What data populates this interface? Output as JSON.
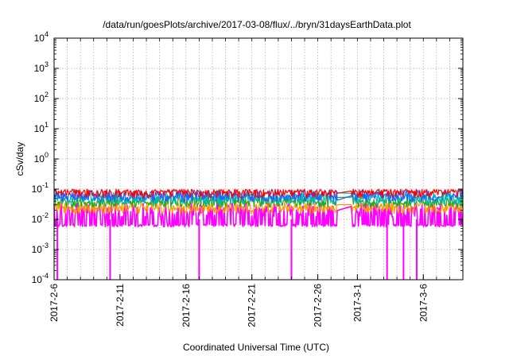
{
  "chart_data": {
    "type": "line",
    "title": "/data/run/goesPlots/archive/2017-03-08/flux/../bryn/31daysEarthData.plot",
    "xlabel": "Coordinated Universal Time (UTC)",
    "ylabel": "cSv/day",
    "yscale": "log",
    "ylim": [
      0.0001,
      10000
    ],
    "xlim": [
      "2017-02-06",
      "2017-03-09"
    ],
    "grid": true,
    "y_ticks": [
      {
        "base": "10",
        "exp": "-4"
      },
      {
        "base": "10",
        "exp": "-3"
      },
      {
        "base": "10",
        "exp": "-2"
      },
      {
        "base": "10",
        "exp": "-1"
      },
      {
        "base": "10",
        "exp": "0"
      },
      {
        "base": "10",
        "exp": "1"
      },
      {
        "base": "10",
        "exp": "2"
      },
      {
        "base": "10",
        "exp": "3"
      },
      {
        "base": "10",
        "exp": "4"
      }
    ],
    "x_ticks": [
      "2017-2-6",
      "2017-2-11",
      "2017-2-16",
      "2017-2-21",
      "2017-2-26",
      "2017-3-1",
      "2017-3-6"
    ],
    "data_gap": [
      "2017-02-27T12:00",
      "2017-02-28T12:00"
    ],
    "series": [
      {
        "color": "#ff0000",
        "typical": 0.075,
        "spikes_max": 0.1
      },
      {
        "color": "#1e5fff",
        "typical": 0.055
      },
      {
        "color": "#00b8b8",
        "typical": 0.045
      },
      {
        "color": "#22a822",
        "typical": 0.035
      },
      {
        "color": "#ff9900",
        "typical": 0.022
      },
      {
        "color": "#ff00ff",
        "typical": 0.02,
        "min": 0.006,
        "dropouts": [
          "2017-02-06T06:00",
          "2017-02-10T06:00",
          "2017-02-17T00:00",
          "2017-02-24T00:00",
          "2017-03-03T06:00",
          "2017-03-04T12:00",
          "2017-03-05T12:00"
        ]
      }
    ]
  }
}
